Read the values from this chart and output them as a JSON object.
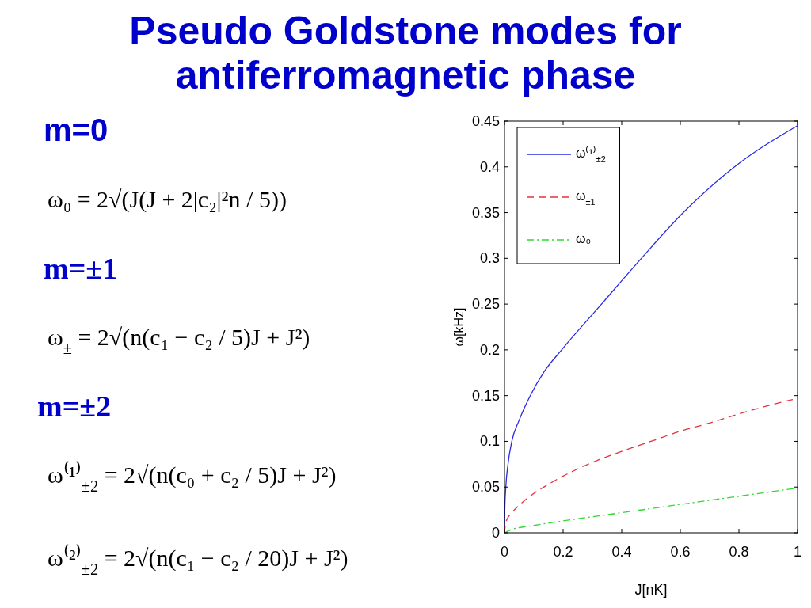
{
  "chart_data": [
    {
      "type": "other",
      "title": "Pseudo Goldstone modes for antiferromagnetic phase",
      "subtitle": "m=0",
      "annotations": [
        "ω₀ = 2√(J(J + 2|c₂|²n / 5))"
      ]
    },
    {
      "type": "other",
      "subtitle": "m=±1",
      "annotations": [
        "ω$_{±}$ = 2√(n(c₁ − c₂ / 5)J + J²)"
      ]
    },
    {
      "type": "other",
      "subtitle": "m=±2",
      "annotations": [
        "ω⁽¹⁾$_{±2}$ = 2√(n(c₀ + c₂ / 5)J + J²)",
        "ω⁽²⁾$_{±2}$ = 2√(n(c₁ − c₂ / 20)J + J²)"
      ]
    },
    {
      "type": "line",
      "xlabel": "J[nK]",
      "ylabel": "ω[kHz]",
      "xlim": [
        0,
        1
      ],
      "xticks": [
        0,
        0.2,
        0.4,
        0.6,
        0.8,
        1
      ],
      "ylim": [
        0,
        0.45
      ],
      "yticks": [
        0,
        0.05,
        0.1,
        0.15,
        0.2,
        0.25,
        0.3,
        0.35,
        0.4,
        0.45
      ],
      "legend": "top left",
      "series": [
        {
          "name": "ω⁽¹⁾$_{±2}$",
          "color": "#2a2ae6",
          "line_style": "solid",
          "x": [
            0,
            0.001,
            0.0045,
            0.012,
            0.025,
            0.05,
            0.088,
            0.135,
            0.195,
            0.331,
            0.467,
            0.61,
            0.785,
            1
          ],
          "values": [
            0,
            0.025,
            0.05,
            0.075,
            0.1,
            0.123,
            0.15,
            0.176,
            0.2,
            0.25,
            0.3,
            0.35,
            0.4,
            0.445
          ]
        },
        {
          "name": "ω$_{±1}$",
          "color": "#e8303c",
          "line_style": "dashed",
          "x": [
            0,
            0.005,
            0.025,
            0.05,
            0.1,
            0.15,
            0.2,
            0.3,
            0.4,
            0.5,
            0.6,
            0.7,
            0.8,
            0.9,
            1
          ],
          "values": [
            0,
            0.012,
            0.022,
            0.03,
            0.043,
            0.053,
            0.062,
            0.077,
            0.089,
            0.1,
            0.111,
            0.12,
            0.13,
            0.139,
            0.147
          ]
        },
        {
          "name": "ω₀",
          "color": "#30d830",
          "line_style": "dashdot",
          "x": [
            0,
            0.02,
            0.1,
            0.2,
            0.4,
            0.6,
            0.8,
            1
          ],
          "values": [
            0,
            0.003,
            0.008,
            0.013,
            0.022,
            0.031,
            0.04,
            0.049
          ]
        }
      ]
    }
  ]
}
